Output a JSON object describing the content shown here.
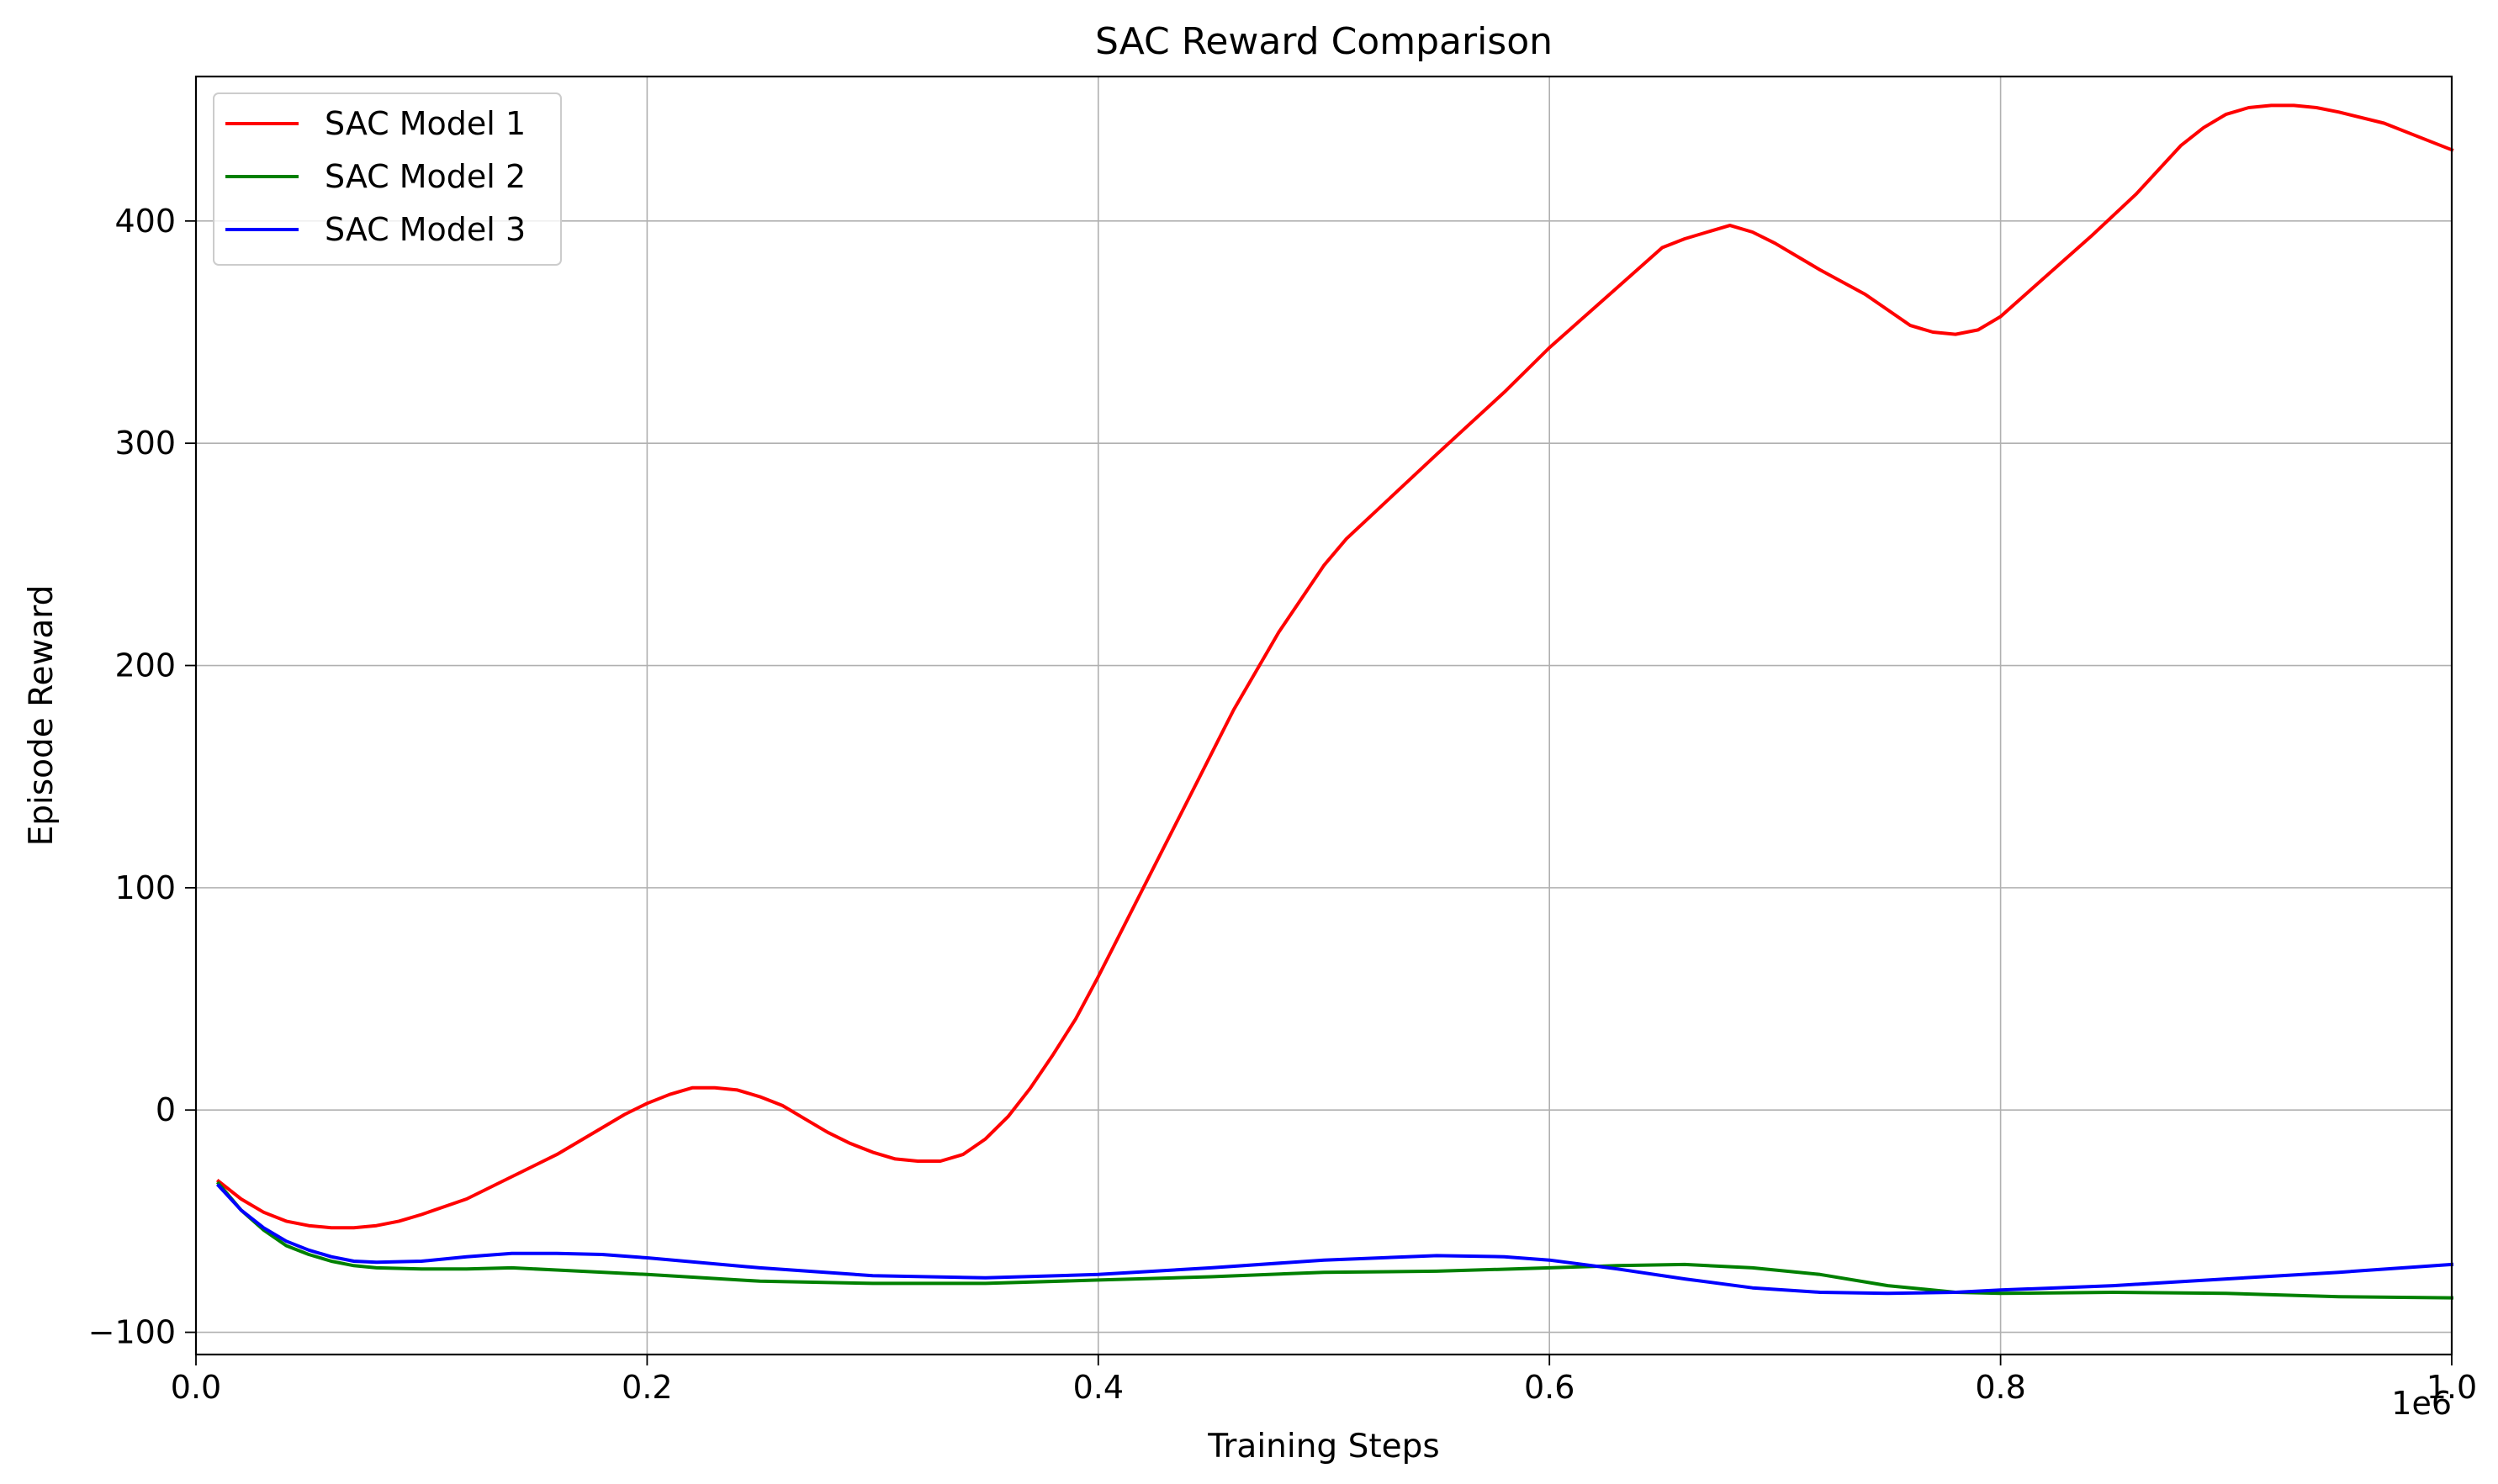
{
  "chart_data": {
    "type": "line",
    "title": "SAC Reward Comparison",
    "xlabel": "Training Steps",
    "ylabel": "Episode Reward",
    "x_offset_text": "1e6",
    "xlim": [
      0,
      1000000
    ],
    "ylim": [
      -110,
      465
    ],
    "xticks": [
      0,
      200000,
      400000,
      600000,
      800000,
      1000000
    ],
    "xtick_labels": [
      "0.0",
      "0.2",
      "0.4",
      "0.6",
      "0.8",
      "1.0"
    ],
    "yticks": [
      -100,
      0,
      100,
      200,
      300,
      400
    ],
    "ytick_labels": [
      "−100",
      "0",
      "100",
      "200",
      "300",
      "400"
    ],
    "grid": true,
    "legend_position": "top-left",
    "series": [
      {
        "name": "SAC Model 1",
        "color": "#ff0000",
        "x": [
          10000,
          20000,
          30000,
          40000,
          50000,
          60000,
          70000,
          80000,
          90000,
          100000,
          120000,
          140000,
          160000,
          180000,
          190000,
          200000,
          210000,
          220000,
          230000,
          240000,
          250000,
          260000,
          270000,
          280000,
          290000,
          300000,
          310000,
          320000,
          330000,
          340000,
          350000,
          360000,
          370000,
          380000,
          390000,
          400000,
          420000,
          440000,
          460000,
          480000,
          500000,
          510000,
          530000,
          550000,
          580000,
          600000,
          610000,
          630000,
          650000,
          660000,
          670000,
          680000,
          690000,
          700000,
          720000,
          740000,
          760000,
          770000,
          780000,
          790000,
          800000,
          820000,
          840000,
          860000,
          880000,
          890000,
          900000,
          910000,
          920000,
          930000,
          940000,
          950000,
          970000,
          990000,
          1000000
        ],
        "y": [
          -32,
          -40,
          -46,
          -50,
          -52,
          -53,
          -53,
          -52,
          -50,
          -47,
          -40,
          -30,
          -20,
          -8,
          -2,
          3,
          7,
          10,
          10,
          9,
          6,
          2,
          -4,
          -10,
          -15,
          -19,
          -22,
          -23,
          -23,
          -20,
          -13,
          -3,
          10,
          25,
          41,
          60,
          100,
          140,
          180,
          215,
          245,
          257,
          276,
          295,
          323,
          343,
          352,
          370,
          388,
          392,
          395,
          398,
          395,
          390,
          378,
          367,
          353,
          350,
          349,
          351,
          357,
          375,
          393,
          412,
          434,
          442,
          448,
          451,
          452,
          452,
          451,
          449,
          444,
          436,
          432
        ]
      },
      {
        "name": "SAC Model 2",
        "color": "#008000",
        "x": [
          10000,
          20000,
          30000,
          40000,
          50000,
          60000,
          70000,
          80000,
          100000,
          120000,
          140000,
          160000,
          200000,
          250000,
          300000,
          350000,
          400000,
          450000,
          500000,
          550000,
          600000,
          630000,
          660000,
          690000,
          720000,
          750000,
          780000,
          800000,
          850000,
          900000,
          950000,
          1000000
        ],
        "y": [
          -33,
          -45,
          -54,
          -61,
          -65,
          -68,
          -70,
          -71,
          -71.5,
          -71.5,
          -71,
          -72,
          -74,
          -77,
          -78,
          -78,
          -76.5,
          -75,
          -73,
          -72.5,
          -71,
          -70,
          -69.5,
          -71,
          -74,
          -79,
          -82,
          -82.5,
          -82,
          -82.5,
          -84,
          -84.5
        ]
      },
      {
        "name": "SAC Model 3",
        "color": "#0000ff",
        "x": [
          10000,
          20000,
          30000,
          40000,
          50000,
          60000,
          70000,
          80000,
          100000,
          120000,
          140000,
          160000,
          180000,
          200000,
          250000,
          300000,
          350000,
          400000,
          450000,
          500000,
          550000,
          580000,
          600000,
          630000,
          660000,
          690000,
          720000,
          750000,
          780000,
          800000,
          850000,
          900000,
          950000,
          1000000
        ],
        "y": [
          -34,
          -45,
          -53,
          -59,
          -63,
          -66,
          -68,
          -68.5,
          -68,
          -66,
          -64.5,
          -64.5,
          -65,
          -66.5,
          -71,
          -74.5,
          -75.5,
          -74,
          -71,
          -67.5,
          -65.5,
          -66,
          -67.5,
          -71.5,
          -76,
          -80,
          -82,
          -82.5,
          -82,
          -81,
          -79,
          -76,
          -73,
          -69.5
        ]
      }
    ]
  }
}
